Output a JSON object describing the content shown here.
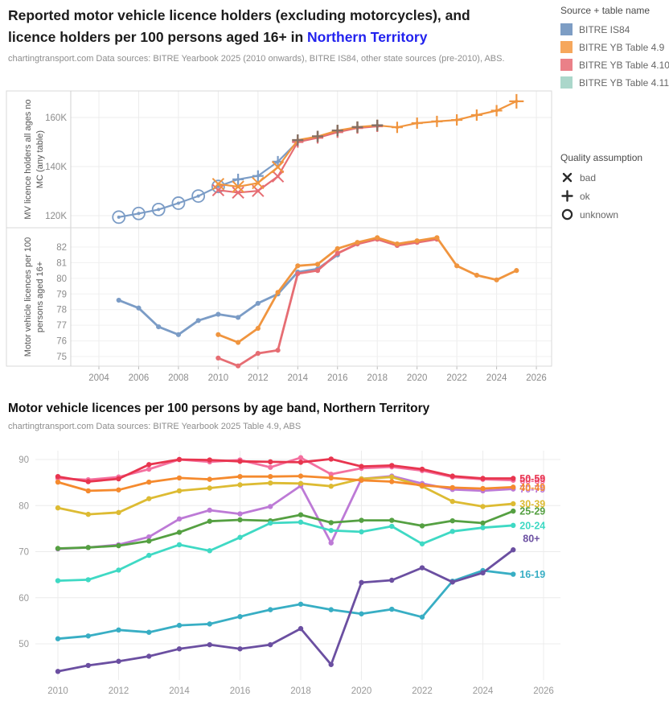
{
  "header": {
    "title_line1": "Reported motor vehicle licence holders (excluding motorcycles), and",
    "title_line2_prefix": "licence holders per 100 persons aged 16+ in ",
    "title_line2_highlight": "Northern Territory",
    "highlight_color": "#2222ee",
    "subtitle": "chartingtransport.com  Data sources: BITRE Yearbook 2025 (2010 onwards), BITRE IS84, other state sources (pre-2010), ABS."
  },
  "section2": {
    "title": "Motor vehicle licences per 100 persons by age band, Northern Territory",
    "subtitle": "chartingtransport.com  Data sources: BITRE Yearbook 2025 Table 4.9, ABS"
  },
  "source_legend": {
    "title": "Source + table name",
    "items": [
      {
        "label": "BITRE IS84",
        "color": "#7d9dc4"
      },
      {
        "label": "BITRE YB Table 4.9",
        "color": "#f6a75c"
      },
      {
        "label": "BITRE YB Table 4.10",
        "color": "#ea8088"
      },
      {
        "label": "BITRE YB Table 4.11",
        "color": "#abd7cb"
      }
    ]
  },
  "quality_legend": {
    "title": "Quality assumption",
    "items": [
      {
        "label": "bad",
        "symbol": "x-mark"
      },
      {
        "label": "ok",
        "symbol": "plus-mark"
      },
      {
        "label": "unknown",
        "symbol": "circle-mark"
      }
    ]
  },
  "chart_data": [
    {
      "type": "line",
      "id": "licence-holders-dual-panel",
      "title": "Reported motor vehicle licence holders (excluding motorcycles), and licence holders per 100 persons aged 16+ in Northern Territory",
      "x_ticks": [
        2004,
        2006,
        2008,
        2010,
        2012,
        2014,
        2016,
        2018,
        2020,
        2022,
        2024,
        2026
      ],
      "x_range": [
        2004,
        2026
      ],
      "legend_position": "right",
      "grid": true,
      "panels": [
        {
          "ylabel_line1": "MV licence holders all ages no",
          "ylabel_line2": "MC (any table)",
          "yticks": [
            "120K",
            "140K",
            "160K"
          ],
          "ytick_values": [
            120,
            140,
            160
          ],
          "unit": "thousands",
          "series": [
            {
              "name": "BITRE IS84",
              "color": "#7b9cc6",
              "years": [
                2005,
                2006,
                2007,
                2008,
                2009,
                2010,
                2011,
                2012,
                2013,
                2014,
                2015,
                2016
              ],
              "values": [
                119.4,
                120.9,
                122.5,
                125.1,
                128.0,
                131.9,
                134.8,
                136.2,
                142.0,
                150.2,
                152.0,
                154.3
              ],
              "quality": [
                "unknown",
                "unknown",
                "unknown",
                "unknown",
                "unknown",
                "unknown",
                "ok",
                "ok",
                "ok",
                "ok",
                "ok",
                "ok"
              ]
            },
            {
              "name": "BITRE YB Table 4.10",
              "color": "#e66d73",
              "years": [
                2010,
                2011,
                2012,
                2013,
                2014,
                2015,
                2016,
                2017,
                2018
              ],
              "values": [
                130.4,
                129.4,
                130.1,
                136.0,
                150.0,
                151.7,
                154.0,
                155.7,
                156.4
              ],
              "quality": [
                "bad",
                "bad",
                "bad",
                "bad",
                "ok",
                "ok",
                "ok",
                "ok",
                "ok"
              ]
            },
            {
              "name": "BITRE YB Table 4.9",
              "color": "#f0953f",
              "years": [
                2010,
                2011,
                2012,
                2013,
                2014,
                2015,
                2016,
                2017,
                2018,
                2019,
                2020,
                2021,
                2022,
                2023,
                2024,
                2025
              ],
              "values": [
                132.9,
                131.8,
                133.3,
                139.8,
                150.8,
                152.3,
                154.7,
                156.1,
                156.8,
                156.0,
                157.7,
                158.4,
                159.0,
                161.0,
                162.8,
                166.6
              ],
              "quality": [
                "bad",
                "bad",
                "bad",
                "bad",
                "ok",
                "ok",
                "ok",
                "ok",
                "ok",
                "ok",
                "ok",
                "ok",
                "ok",
                "ok",
                "ok",
                "ok"
              ]
            }
          ],
          "overlap_markers": {
            "color": "#857065",
            "points": [
              [
                2014,
                150.8
              ],
              [
                2015,
                152.3
              ],
              [
                2016,
                154.7
              ],
              [
                2017,
                156.1
              ],
              [
                2018,
                156.8
              ]
            ]
          }
        },
        {
          "ylabel_line1": "Motor vehicle licences per 100",
          "ylabel_line2": "persons aged 16+",
          "yticks": [
            "75",
            "76",
            "77",
            "78",
            "79",
            "80",
            "81",
            "82"
          ],
          "ytick_values": [
            75,
            76,
            77,
            78,
            79,
            80,
            81,
            82
          ],
          "unit": "licences per 100 persons aged 16+",
          "series": [
            {
              "name": "BITRE IS84",
              "color": "#7b9cc6",
              "years": [
                2005,
                2006,
                2007,
                2008,
                2009,
                2010,
                2011,
                2012,
                2013,
                2014,
                2015,
                2016
              ],
              "values": [
                78.6,
                78.1,
                76.9,
                76.4,
                77.3,
                77.7,
                77.5,
                78.4,
                79.0,
                80.4,
                80.6,
                81.5
              ]
            },
            {
              "name": "BITRE YB Table 4.10",
              "color": "#e66d73",
              "years": [
                2010,
                2011,
                2012,
                2013,
                2014,
                2015,
                2016,
                2017,
                2018,
                2019,
                2020,
                2021
              ],
              "values": [
                74.9,
                74.4,
                75.2,
                75.4,
                80.3,
                80.5,
                81.6,
                82.2,
                82.5,
                82.1,
                82.3,
                82.5
              ]
            },
            {
              "name": "BITRE YB Table 4.9",
              "color": "#f0953f",
              "years": [
                2010,
                2011,
                2012,
                2013,
                2014,
                2015,
                2016,
                2017,
                2018,
                2019,
                2020,
                2021,
                2022,
                2023,
                2024,
                2025
              ],
              "values": [
                76.4,
                75.9,
                76.8,
                79.1,
                80.8,
                80.9,
                81.9,
                82.3,
                82.6,
                82.2,
                82.4,
                82.6,
                80.8,
                80.2,
                79.9,
                80.5
              ]
            }
          ]
        }
      ]
    },
    {
      "type": "line",
      "id": "age-band-licences",
      "title": "Motor vehicle licences per 100 persons by age band, Northern Territory",
      "x_ticks": [
        2010,
        2012,
        2014,
        2016,
        2018,
        2020,
        2022,
        2024,
        2026
      ],
      "x_range": [
        2010,
        2026
      ],
      "yticks": [
        50,
        60,
        70,
        80,
        90
      ],
      "ylim": [
        44,
        92
      ],
      "grid": true,
      "years": [
        2010,
        2011,
        2012,
        2013,
        2014,
        2015,
        2016,
        2017,
        2018,
        2019,
        2020,
        2021,
        2022,
        2023,
        2024,
        2025
      ],
      "series": [
        {
          "name": "60-69",
          "color": "#f4709f",
          "values": [
            85.9,
            85.6,
            86.2,
            87.9,
            90.0,
            89.5,
            89.9,
            88.3,
            90.4,
            86.8,
            88.1,
            88.4,
            87.6,
            86.2,
            85.7,
            85.5
          ]
        },
        {
          "name": "70-79",
          "color": "#bd7ad6",
          "values": [
            70.6,
            70.9,
            71.5,
            73.2,
            77.1,
            79.0,
            78.2,
            79.8,
            84.3,
            71.9,
            85.8,
            86.4,
            84.8,
            83.5,
            83.2,
            83.6
          ]
        },
        {
          "name": "30-39",
          "color": "#ddbb33",
          "values": [
            79.5,
            78.1,
            78.5,
            81.5,
            83.2,
            83.8,
            84.5,
            84.9,
            84.8,
            84.2,
            85.8,
            86.2,
            84.2,
            80.9,
            79.8,
            80.4
          ]
        },
        {
          "name": "25-29",
          "color": "#55a042",
          "values": [
            70.7,
            70.9,
            71.3,
            72.3,
            74.2,
            76.6,
            76.9,
            76.7,
            78.0,
            76.3,
            76.8,
            76.8,
            75.6,
            76.7,
            76.2,
            78.8
          ]
        },
        {
          "name": "20-24",
          "color": "#3fd9c4",
          "values": [
            63.7,
            63.9,
            66.0,
            69.2,
            71.5,
            70.2,
            73.1,
            76.2,
            76.4,
            74.6,
            74.3,
            75.5,
            71.7,
            74.4,
            75.2,
            75.7
          ]
        },
        {
          "name": "16-19",
          "color": "#38aec4",
          "values": [
            51.1,
            51.7,
            53.0,
            52.5,
            54.0,
            54.3,
            55.9,
            57.4,
            58.6,
            57.4,
            56.5,
            57.5,
            55.8,
            63.6,
            65.9,
            65.1
          ]
        },
        {
          "name": "80+",
          "color": "#6b4fa1",
          "label_dx": 4,
          "label_dy": -14,
          "values": [
            44.0,
            45.3,
            46.2,
            47.3,
            48.9,
            49.8,
            48.9,
            49.8,
            53.3,
            45.5,
            63.3,
            63.8,
            66.5,
            63.4,
            65.4,
            70.4
          ]
        },
        {
          "name": "40-49",
          "color": "#f58a2e",
          "values": [
            85.1,
            83.2,
            83.4,
            85.1,
            86.0,
            85.7,
            86.3,
            86.3,
            86.4,
            86.0,
            85.5,
            85.2,
            84.4,
            83.9,
            83.7,
            84.0
          ]
        },
        {
          "name": "50-59",
          "color": "#e8354f",
          "values": [
            86.3,
            85.2,
            85.8,
            88.9,
            90.0,
            89.9,
            89.6,
            89.5,
            89.4,
            90.1,
            88.5,
            88.7,
            87.9,
            86.4,
            85.9,
            85.9
          ]
        }
      ]
    }
  ]
}
